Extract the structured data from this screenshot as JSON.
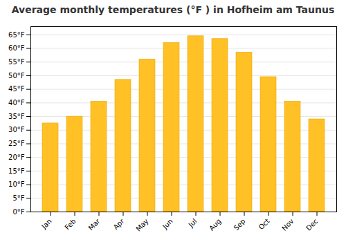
{
  "chart_data": {
    "type": "bar",
    "title": "Average monthly temperatures (°F ) in Hofheim am Taunus",
    "categories": [
      "Jan",
      "Feb",
      "Mar",
      "Apr",
      "May",
      "Jun",
      "Jul",
      "Aug",
      "Sep",
      "Oct",
      "Nov",
      "Dec"
    ],
    "values": [
      32.5,
      35.0,
      40.5,
      48.5,
      56.0,
      62.0,
      64.5,
      63.5,
      58.5,
      49.5,
      40.5,
      34.0
    ],
    "color": "#FFC125",
    "ylim": [
      0,
      68
    ],
    "yticks": [
      {
        "value": 0,
        "label": "0°F"
      },
      {
        "value": 5,
        "label": "5°F"
      },
      {
        "value": 10,
        "label": "10°F"
      },
      {
        "value": 15,
        "label": "15°F"
      },
      {
        "value": 20,
        "label": "20°F"
      },
      {
        "value": 25,
        "label": "25°F"
      },
      {
        "value": 30,
        "label": "30°F"
      },
      {
        "value": 35,
        "label": "35°F"
      },
      {
        "value": 40,
        "label": "40°F"
      },
      {
        "value": 45,
        "label": "45°F"
      },
      {
        "value": 50,
        "label": "50°F"
      },
      {
        "value": 55,
        "label": "55°F"
      },
      {
        "value": 60,
        "label": "60°F"
      },
      {
        "value": 65,
        "label": "65°F"
      }
    ],
    "grid": true
  }
}
